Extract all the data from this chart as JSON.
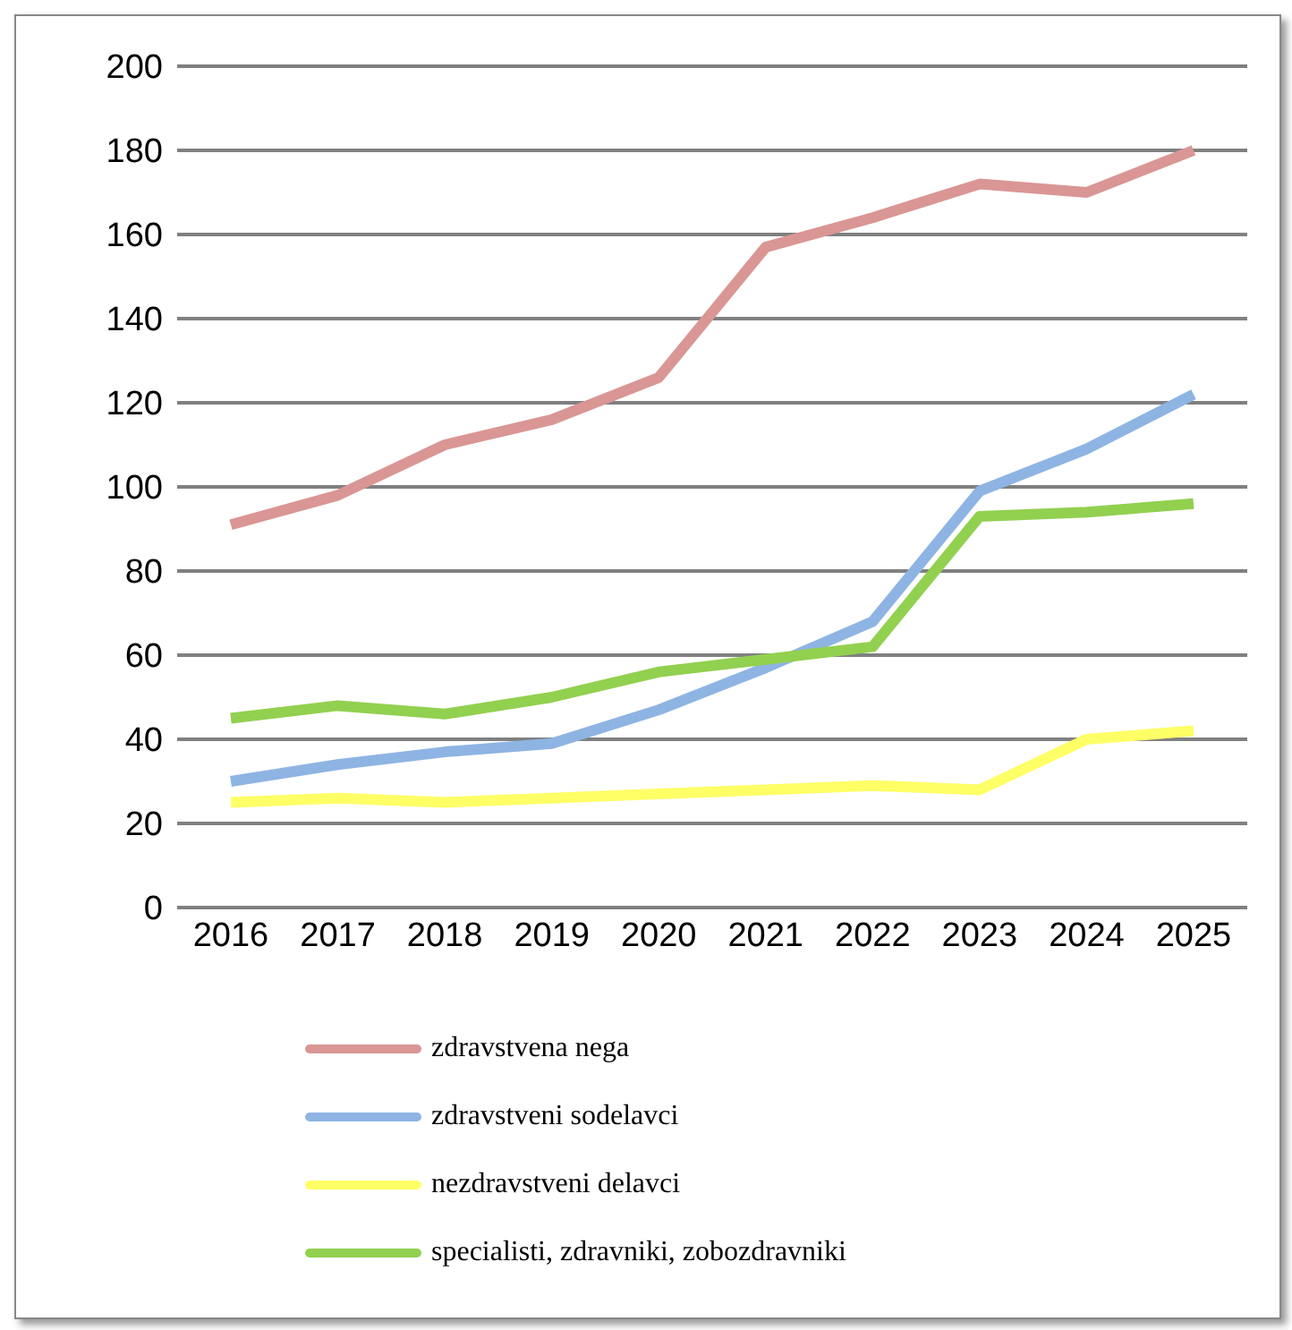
{
  "chart_data": {
    "type": "line",
    "categories": [
      "2016",
      "2017",
      "2018",
      "2019",
      "2020",
      "2021",
      "2022",
      "2023",
      "2024",
      "2025"
    ],
    "series": [
      {
        "name": "zdravstvena nega",
        "color": "#d99694",
        "values": [
          91,
          98,
          110,
          116,
          126,
          157,
          164,
          172,
          170,
          180
        ]
      },
      {
        "name": "zdravstveni sodelavci",
        "color": "#8eb4e3",
        "values": [
          30,
          34,
          37,
          39,
          47,
          57,
          68,
          99,
          109,
          122
        ]
      },
      {
        "name": "nezdravstveni delavci",
        "color": "#ffff66",
        "values": [
          25,
          26,
          25,
          26,
          27,
          28,
          29,
          28,
          40,
          42
        ]
      },
      {
        "name": "specialisti, zdravniki, zobozdravniki",
        "color": "#92d050",
        "values": [
          45,
          48,
          46,
          50,
          56,
          59,
          62,
          93,
          94,
          96
        ]
      }
    ],
    "ylim": [
      0,
      200
    ],
    "yticks": [
      0,
      20,
      40,
      60,
      80,
      100,
      120,
      140,
      160,
      180,
      200
    ],
    "grid": "y",
    "legend": "bottom",
    "marker": "none",
    "line_style": "solid"
  }
}
